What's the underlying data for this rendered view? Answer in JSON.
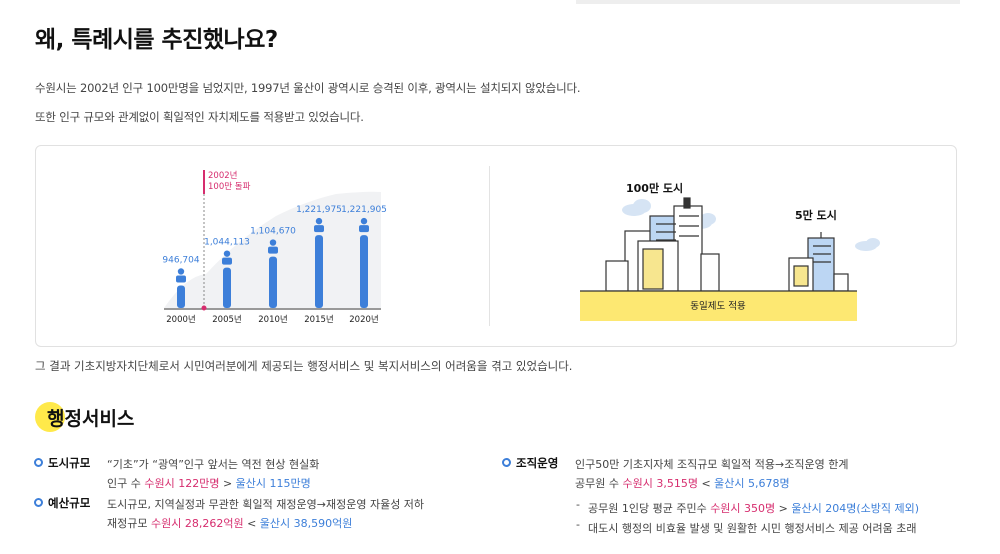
{
  "page": {
    "title": "왜, 특례시를 추진했나요?",
    "intro": [
      "수원시는 2002년 인구 100만명을 넘었지만, 1997년 울산이 광역시로 승격된 이후, 광역시는 설치되지 않았습니다.",
      "또한 인구 규모와 관계없이 획일적인 자치제도를 적용받고 있었습니다."
    ],
    "after_text": "그 결과 기초지방자치단체로서 시민여러분에게 제공되는 행정서비스 및 복지서비스의 어려움을 겪고 있었습니다."
  },
  "chart_data": {
    "type": "bar",
    "categories": [
      "2000년",
      "2005년",
      "2010년",
      "2015년",
      "2020년"
    ],
    "value_labels": [
      "946,704",
      "1,044,113",
      "1,104,670",
      "1,221,975",
      "1,221,905"
    ],
    "values": [
      946704,
      1044113,
      1104670,
      1221975,
      1221905
    ],
    "annotation": [
      "2002년",
      "100만 돌파"
    ],
    "color": "#3d7fd9",
    "annotation_color": "#d62d6e"
  },
  "illustration": {
    "big_city_label": "100만 도시",
    "small_city_label": "5만 도시",
    "ground_label": "동일제도 적용",
    "ground_color": "#fde872"
  },
  "section": {
    "heading": "행정서비스",
    "items": {
      "city": {
        "label": "도시규모",
        "line1": "“기초”가 “광역”인구 앞서는 역전 현상 현실화",
        "line2_prefix": "인구 수 ",
        "suwon": "수원시 122만명",
        "comparator": " > ",
        "ulsan": "울산시 115만명"
      },
      "budget": {
        "label": "예산규모",
        "line1": "도시규모, 지역실정과 무관한 획일적 재정운영→재정운영 자율성 저하",
        "line2_prefix": "재정규모 ",
        "suwon": "수원시 28,262억원",
        "comparator": " < ",
        "ulsan": "울산시 38,590억원"
      },
      "org": {
        "label": "조직운영",
        "line1": "인구50만 기초지자체 조직규모 획일적 적용→조직운영 한계",
        "line2_prefix": "공무원 수 ",
        "suwon": "수원시 3,515명",
        "comparator": " < ",
        "ulsan": "울산시 5,678명",
        "sub1_prefix": "공무원 1인당 평균 주민수 ",
        "sub1_suwon": "수원시 350명",
        "sub1_comparator": " > ",
        "sub1_ulsan": "울산시 204명(소방직 제외)",
        "sub2": "대도시 행정의 비효율 발생 및 원활한 시민 행정서비스 제공 어려움 초래"
      }
    }
  }
}
